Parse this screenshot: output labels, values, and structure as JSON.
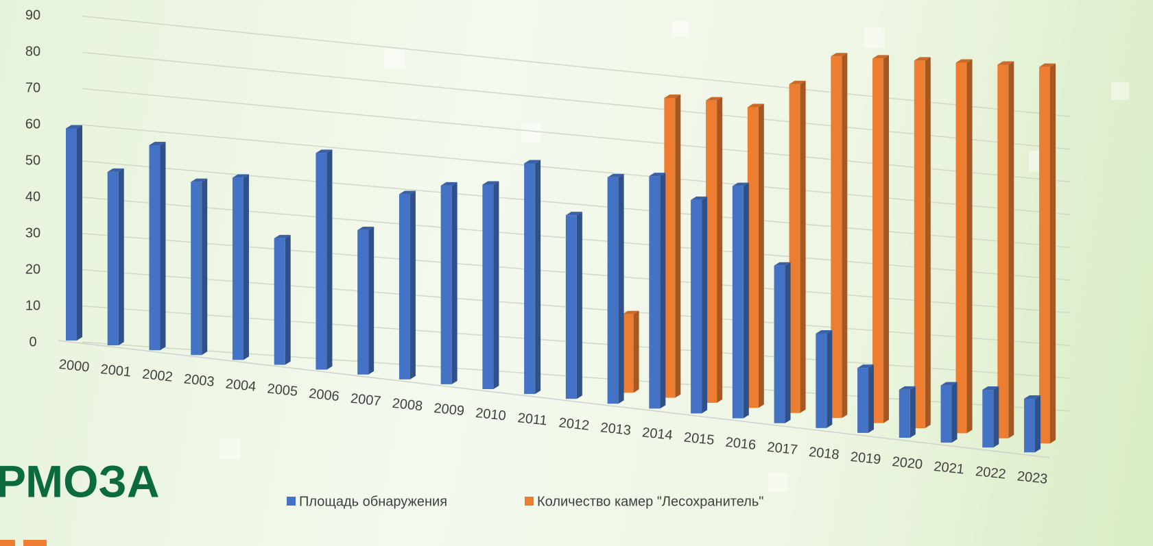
{
  "chart_data": {
    "type": "bar3d",
    "categories": [
      "2000",
      "2001",
      "2002",
      "2003",
      "2004",
      "2005",
      "2006",
      "2007",
      "2008",
      "2009",
      "2010",
      "2011",
      "2012",
      "2013",
      "2014",
      "2015",
      "2016",
      "2017",
      "2018",
      "2019",
      "2020",
      "2021",
      "2022",
      "2023"
    ],
    "series": [
      {
        "name": "Площадь обнаружения",
        "color": "#4472c4",
        "values": [
          58,
          47,
          55,
          46,
          48,
          33,
          56,
          37,
          47,
          50,
          51,
          57,
          45,
          55,
          56,
          51,
          55,
          37,
          22,
          15,
          11,
          13,
          13,
          12
        ]
      },
      {
        "name": "Количество камер \"Лесохранитель\"",
        "color": "#ed7d31",
        "values": [
          null,
          null,
          null,
          null,
          null,
          null,
          null,
          null,
          null,
          null,
          null,
          null,
          null,
          19,
          72,
          72,
          71,
          77,
          84,
          84,
          84,
          84,
          84,
          84
        ]
      }
    ],
    "ylim": [
      0,
      90
    ],
    "yticks": [
      0,
      10,
      20,
      30,
      40,
      50,
      60,
      70,
      80,
      90
    ],
    "grid": true
  },
  "logo": "РМОЗА"
}
